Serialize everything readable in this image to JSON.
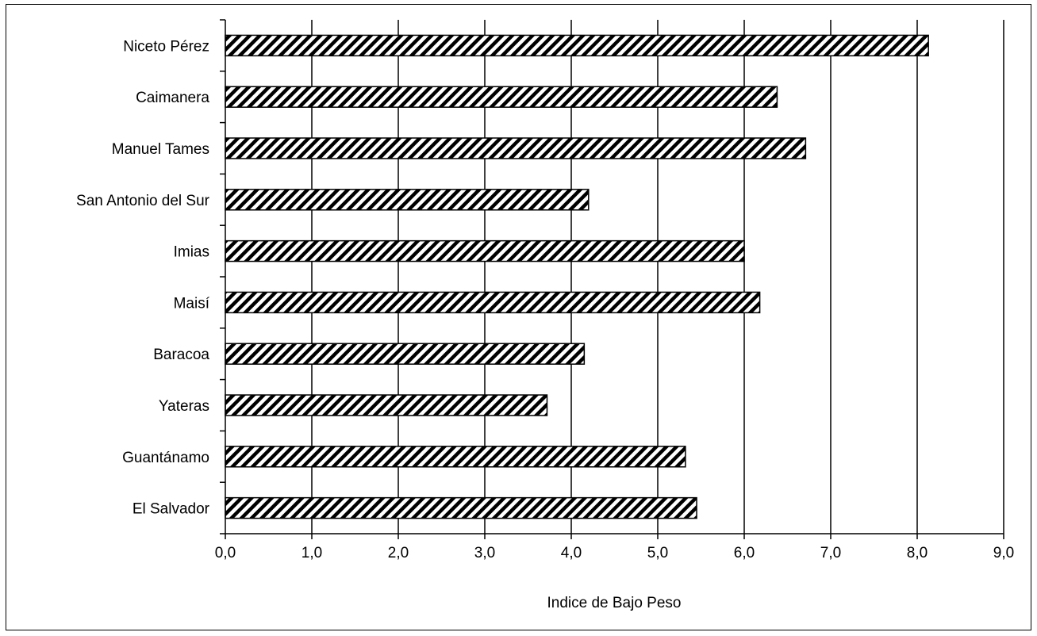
{
  "chart_data": {
    "type": "bar",
    "orientation": "horizontal",
    "categories": [
      "Niceto Pérez",
      "Caimanera",
      "Manuel Tames",
      "San Antonio del Sur",
      "Imias",
      "Maisí",
      "Baracoa",
      "Yateras",
      "Guantánamo",
      "El Salvador"
    ],
    "values": [
      8.13,
      6.38,
      6.71,
      4.2,
      6.0,
      6.18,
      4.15,
      3.72,
      5.32,
      5.45
    ],
    "title": "",
    "xlabel": "Indice de Bajo Peso",
    "ylabel": "",
    "xlim": [
      0,
      9
    ],
    "xticks": [
      "0,0",
      "1,0",
      "2,0",
      "3,0",
      "4,0",
      "5,0",
      "6,0",
      "7,0",
      "8,0",
      "9,0"
    ],
    "grid": "vertical",
    "fill": "diagonal-hatch",
    "colors": {
      "bar_hatch": "#000000",
      "bar_background": "#ffffff",
      "grid": "#000000"
    }
  }
}
